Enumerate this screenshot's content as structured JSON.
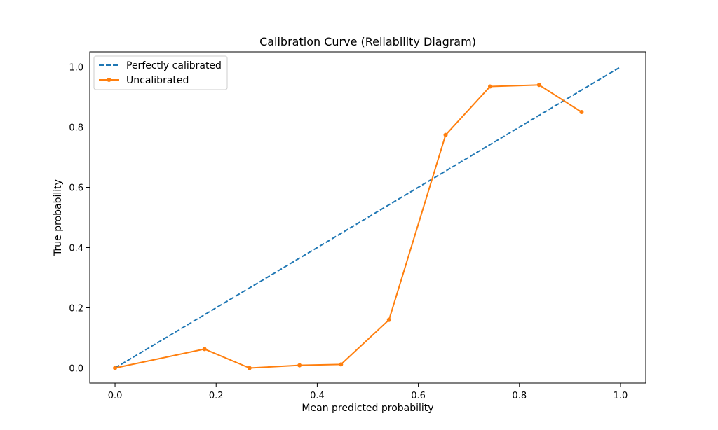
{
  "chart_data": {
    "type": "line",
    "title": "Calibration Curve (Reliability Diagram)",
    "xlabel": "Mean predicted probability",
    "ylabel": "True probability",
    "xlim": [
      -0.05,
      1.05
    ],
    "ylim": [
      -0.05,
      1.05
    ],
    "xticks": [
      0.0,
      0.2,
      0.4,
      0.6,
      0.8,
      1.0
    ],
    "yticks": [
      0.0,
      0.2,
      0.4,
      0.6,
      0.8,
      1.0
    ],
    "xtick_labels": [
      "0.0",
      "0.2",
      "0.4",
      "0.6",
      "0.8",
      "1.0"
    ],
    "ytick_labels": [
      "0.0",
      "0.2",
      "0.4",
      "0.6",
      "0.8",
      "1.0"
    ],
    "grid": false,
    "legend_position": "top-left",
    "series": [
      {
        "name": "Perfectly calibrated",
        "style": "dashed",
        "markers": false,
        "color": "#1f77b4",
        "x": [
          0.0,
          1.0
        ],
        "y": [
          0.0,
          1.0
        ]
      },
      {
        "name": "Uncalibrated",
        "style": "solid",
        "markers": true,
        "color": "#ff7f0e",
        "x": [
          0.0,
          0.177,
          0.266,
          0.365,
          0.447,
          0.542,
          0.654,
          0.742,
          0.839,
          0.923
        ],
        "y": [
          0.0,
          0.063,
          0.0,
          0.009,
          0.012,
          0.16,
          0.774,
          0.935,
          0.94,
          0.85
        ]
      }
    ]
  }
}
